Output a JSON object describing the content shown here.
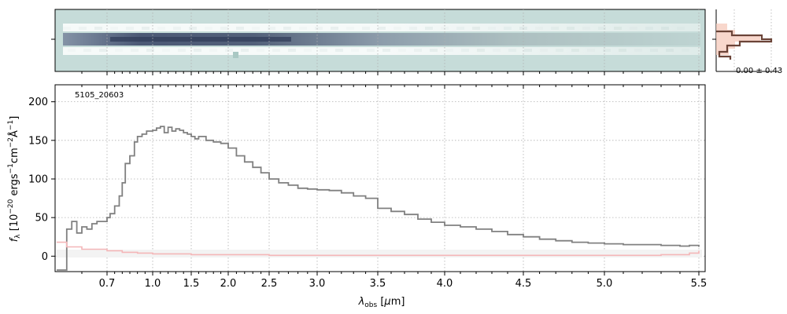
{
  "chart_data": [
    {
      "type": "heatmap",
      "panel": "2d-spectrum",
      "colormap": [
        "#c6dcd9",
        "#ffffff",
        "#3e4a6a"
      ],
      "trace_rows": 6,
      "histogram": {
        "annotation": "0.00 ± 0.43",
        "colors": {
          "fill": "#f6cdbf",
          "step": "#6b4438"
        }
      }
    },
    {
      "type": "line",
      "panel": "1d-spectrum",
      "id_label": "5105_20603",
      "xlabel": "λ_obs [μm]",
      "ylabel": "f_λ [10^−20 ergs^−1cm^−2Å^−1]",
      "xlim": [
        0.6,
        5.52
      ],
      "ylim": [
        -20,
        222
      ],
      "xscale": "nonlinear (spectral)",
      "x_ticks": [
        "0.7",
        "1.0",
        "1.5",
        "2.0",
        "2.5",
        "3.0",
        "3.5",
        "4.0",
        "4.5",
        "5.0",
        "5.5"
      ],
      "y_ticks": [
        "0",
        "50",
        "100",
        "150",
        "200"
      ],
      "grid": true,
      "series": [
        {
          "color": "#808080",
          "drawstyle": "steps",
          "x": [
            0.6,
            0.62,
            0.63,
            0.64,
            0.65,
            0.66,
            0.67,
            0.68,
            0.7,
            0.72,
            0.75,
            0.78,
            0.8,
            0.82,
            0.85,
            0.88,
            0.9,
            0.93,
            0.96,
            1.0,
            1.05,
            1.1,
            1.15,
            1.2,
            1.25,
            1.3,
            1.35,
            1.4,
            1.45,
            1.5,
            1.55,
            1.6,
            1.7,
            1.8,
            1.9,
            2.0,
            2.1,
            2.2,
            2.3,
            2.4,
            2.5,
            2.6,
            2.7,
            2.8,
            2.9,
            3.0,
            3.1,
            3.2,
            3.3,
            3.4,
            3.5,
            3.6,
            3.7,
            3.8,
            3.9,
            4.0,
            4.1,
            4.2,
            4.3,
            4.4,
            4.5,
            4.6,
            4.7,
            4.8,
            4.9,
            5.0,
            5.1,
            5.2,
            5.3,
            5.4,
            5.45,
            5.5
          ],
          "y": [
            -18,
            35,
            45,
            30,
            38,
            35,
            42,
            45,
            50,
            55,
            65,
            78,
            95,
            120,
            130,
            148,
            155,
            158,
            162,
            163,
            166,
            168,
            160,
            167,
            162,
            165,
            163,
            160,
            158,
            155,
            152,
            155,
            150,
            148,
            146,
            140,
            130,
            122,
            115,
            108,
            100,
            95,
            92,
            88,
            87,
            86,
            85,
            82,
            78,
            75,
            62,
            58,
            54,
            48,
            44,
            40,
            38,
            35,
            32,
            28,
            25,
            22,
            20,
            18,
            17,
            16,
            15,
            15,
            14,
            13,
            14,
            12
          ]
        },
        {
          "color": "#f4b6b8",
          "drawstyle": "steps",
          "x": [
            0.6,
            0.62,
            0.65,
            0.7,
            0.8,
            0.9,
            1.0,
            1.5,
            2.0,
            2.5,
            3.0,
            3.5,
            4.0,
            4.5,
            5.0,
            5.3,
            5.45,
            5.5
          ],
          "y": [
            18,
            12,
            9,
            7,
            5,
            4,
            3,
            2,
            2,
            1,
            1,
            1,
            1,
            1,
            1,
            2,
            4,
            7
          ]
        }
      ]
    }
  ]
}
